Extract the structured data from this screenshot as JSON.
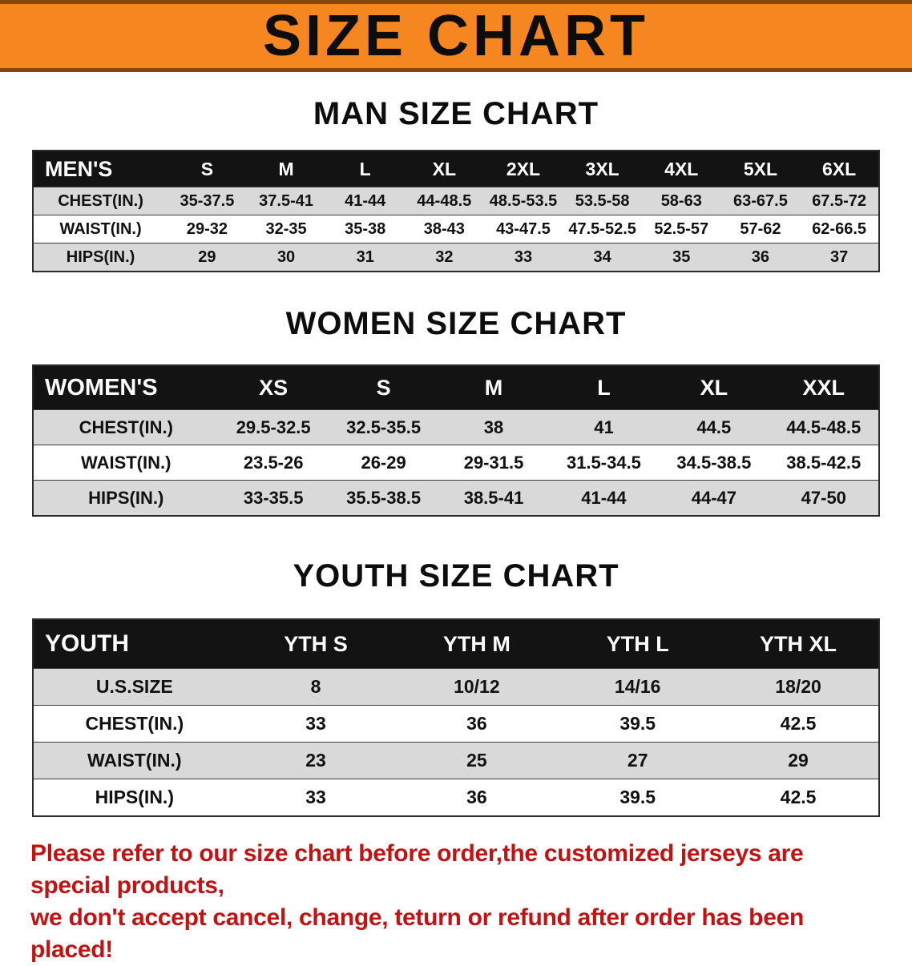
{
  "banner": {
    "title": "SIZE CHART",
    "accent_color": "#f6861f"
  },
  "sections": [
    {
      "heading": "MAN SIZE CHART",
      "table": {
        "header": [
          "MEN'S",
          "S",
          "M",
          "L",
          "XL",
          "2XL",
          "3XL",
          "4XL",
          "5XL",
          "6XL"
        ],
        "rows": [
          [
            "CHEST(IN.)",
            "35-37.5",
            "37.5-41",
            "41-44",
            "44-48.5",
            "48.5-53.5",
            "53.5-58",
            "58-63",
            "63-67.5",
            "67.5-72"
          ],
          [
            "WAIST(IN.)",
            "29-32",
            "32-35",
            "35-38",
            "38-43",
            "43-47.5",
            "47.5-52.5",
            "52.5-57",
            "57-62",
            "62-66.5"
          ],
          [
            "HIPS(IN.)",
            "29",
            "30",
            "31",
            "32",
            "33",
            "34",
            "35",
            "36",
            "37"
          ]
        ]
      }
    },
    {
      "heading": "WOMEN SIZE CHART",
      "table": {
        "header": [
          "WOMEN'S",
          "XS",
          "S",
          "M",
          "L",
          "XL",
          "XXL"
        ],
        "rows": [
          [
            "CHEST(IN.)",
            "29.5-32.5",
            "32.5-35.5",
            "38",
            "41",
            "44.5",
            "44.5-48.5"
          ],
          [
            "WAIST(IN.)",
            "23.5-26",
            "26-29",
            "29-31.5",
            "31.5-34.5",
            "34.5-38.5",
            "38.5-42.5"
          ],
          [
            "HIPS(IN.)",
            "33-35.5",
            "35.5-38.5",
            "38.5-41",
            "41-44",
            "44-47",
            "47-50"
          ]
        ]
      }
    },
    {
      "heading": "YOUTH SIZE CHART",
      "table": {
        "header": [
          "YOUTH",
          "YTH S",
          "YTH M",
          "YTH L",
          "YTH XL"
        ],
        "rows": [
          [
            "U.S.SIZE",
            "8",
            "10/12",
            "14/16",
            "18/20"
          ],
          [
            "CHEST(IN.)",
            "33",
            "36",
            "39.5",
            "42.5"
          ],
          [
            "WAIST(IN.)",
            "23",
            "25",
            "27",
            "29"
          ],
          [
            "HIPS(IN.)",
            "33",
            "36",
            "39.5",
            "42.5"
          ]
        ]
      }
    }
  ],
  "footer": {
    "line1": "Please refer to our size chart before order,the customized jerseys are special products,",
    "line2": "we don't accept cancel, change, teturn or refund after order has been placed!",
    "text_color": "#c41111"
  }
}
